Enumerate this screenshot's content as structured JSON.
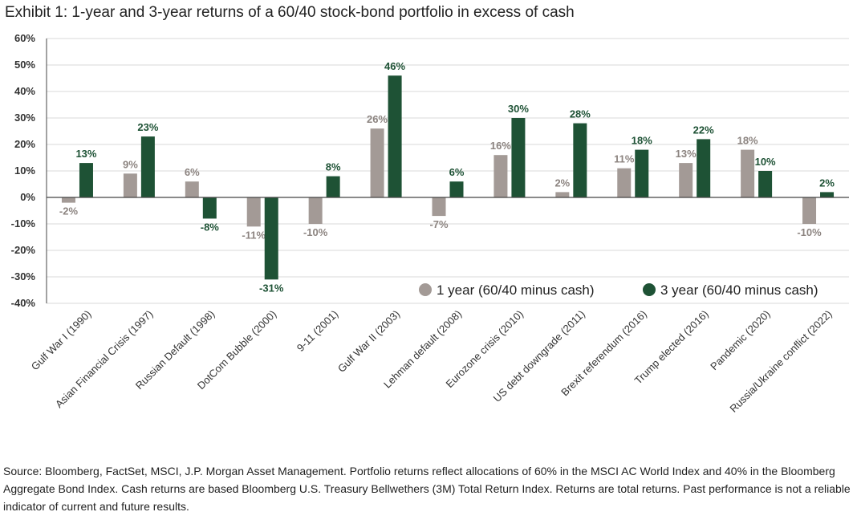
{
  "title": "Exhibit 1: 1-year and 3-year returns of a 60/40 stock-bond portfolio in excess of cash",
  "source": "Source: Bloomberg, FactSet, MSCI, J.P. Morgan Asset Management. Portfolio returns reflect allocations of 60% in the MSCI AC World Index and 40% in the Bloomberg Aggregate Bond Index. Cash returns are based Bloomberg U.S. Treasury Bellwethers (3M) Total Return Index. Returns are total returns. Past performance is not a reliable indicator of current and future results.",
  "colors": {
    "one_year": "#a39a96",
    "three_year": "#1e5235",
    "grid": "#d9d9d9",
    "axis": "#444444",
    "label_one": "#8c8480",
    "label_three": "#1e5235"
  },
  "chart_data": {
    "type": "bar",
    "categories": [
      "Gulf War I (1990)",
      "Asian Financial Crisis (1997)",
      "Russian Default (1998)",
      "DotCom Bubble (2000)",
      "9-11 (2001)",
      "Gulf War II (2003)",
      "Lehman default (2008)",
      "Eurozone crisis (2010)",
      "US debt downgrade (2011)",
      "Brexit referendum (2016)",
      "Trump elected (2016)",
      "Pandemic (2020)",
      "Russia/Ukraine conflict (2022)"
    ],
    "series": [
      {
        "name": "1 year (60/40 minus cash)",
        "values": [
          -2,
          9,
          6,
          -11,
          -10,
          26,
          -7,
          16,
          2,
          11,
          13,
          18,
          -10
        ],
        "labels": [
          "-2%",
          "9%",
          "6%",
          "-11%",
          "-10%",
          "26%",
          "-7%",
          "16%",
          "2%",
          "11%",
          "13%",
          "18%",
          "-10%"
        ]
      },
      {
        "name": "3 year (60/40 minus cash)",
        "values": [
          13,
          23,
          -8,
          -31,
          8,
          46,
          6,
          30,
          28,
          18,
          22,
          10,
          2
        ],
        "labels": [
          "13%",
          "23%",
          "-8%",
          "-31%",
          "8%",
          "46%",
          "6%",
          "30%",
          "28%",
          "18%",
          "22%",
          "10%",
          "2%"
        ]
      }
    ],
    "ylim": [
      -40,
      60
    ],
    "yticks": [
      60,
      50,
      40,
      30,
      20,
      10,
      0,
      -10,
      -20,
      -30,
      -40
    ],
    "ytick_labels": [
      "60%",
      "50%",
      "40%",
      "30%",
      "20%",
      "10%",
      "0%",
      "-10%",
      "-20%",
      "-30%",
      "-40%"
    ],
    "grid": true,
    "legend": "inside-lower-right"
  }
}
